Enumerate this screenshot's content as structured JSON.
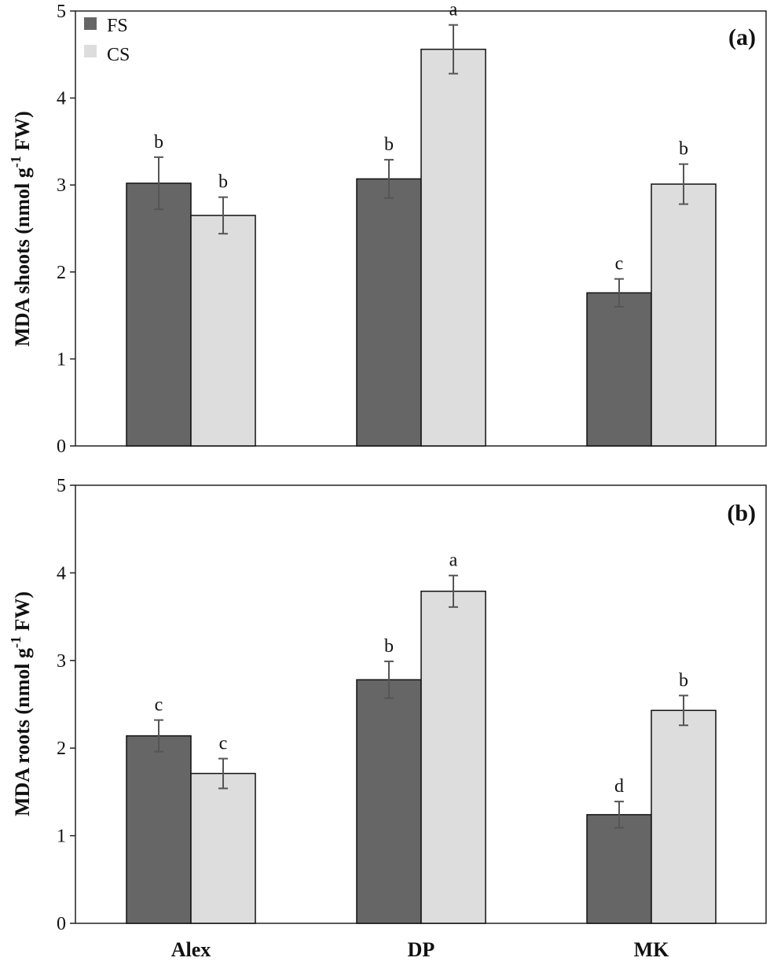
{
  "chart_data": [
    {
      "type": "bar",
      "panel_label": "(a)",
      "ylabel_main": "MDA shoots (nmol g",
      "ylabel_sup": "-1",
      "ylabel_end": " FW)",
      "ylim": [
        0,
        5
      ],
      "yticks": [
        "0",
        "1",
        "2",
        "3",
        "4",
        "5"
      ],
      "categories": [
        "Alex",
        "DP",
        "MK"
      ],
      "legend_position": "top-left",
      "series": [
        {
          "name": "FS",
          "color": "#666666",
          "values": [
            3.02,
            3.07,
            1.76
          ],
          "errors": [
            0.3,
            0.22,
            0.16
          ],
          "letters": [
            "b",
            "b",
            "c"
          ]
        },
        {
          "name": "CS",
          "color": "#dddddd",
          "values": [
            2.65,
            4.56,
            3.01
          ],
          "errors": [
            0.21,
            0.28,
            0.23
          ],
          "letters": [
            "b",
            "a",
            "b"
          ]
        }
      ]
    },
    {
      "type": "bar",
      "panel_label": "(b)",
      "ylabel_main": "MDA roots (nmol g",
      "ylabel_sup": "-1",
      "ylabel_end": " FW)",
      "ylim": [
        0,
        5
      ],
      "yticks": [
        "0",
        "1",
        "2",
        "3",
        "4",
        "5"
      ],
      "categories": [
        "Alex",
        "DP",
        "MK"
      ],
      "series": [
        {
          "name": "FS",
          "color": "#666666",
          "values": [
            2.14,
            2.78,
            1.24
          ],
          "errors": [
            0.18,
            0.21,
            0.15
          ],
          "letters": [
            "c",
            "b",
            "d"
          ]
        },
        {
          "name": "CS",
          "color": "#dddddd",
          "values": [
            1.71,
            3.79,
            2.43
          ],
          "errors": [
            0.17,
            0.18,
            0.17
          ],
          "letters": [
            "c",
            "a",
            "b"
          ]
        }
      ]
    }
  ]
}
